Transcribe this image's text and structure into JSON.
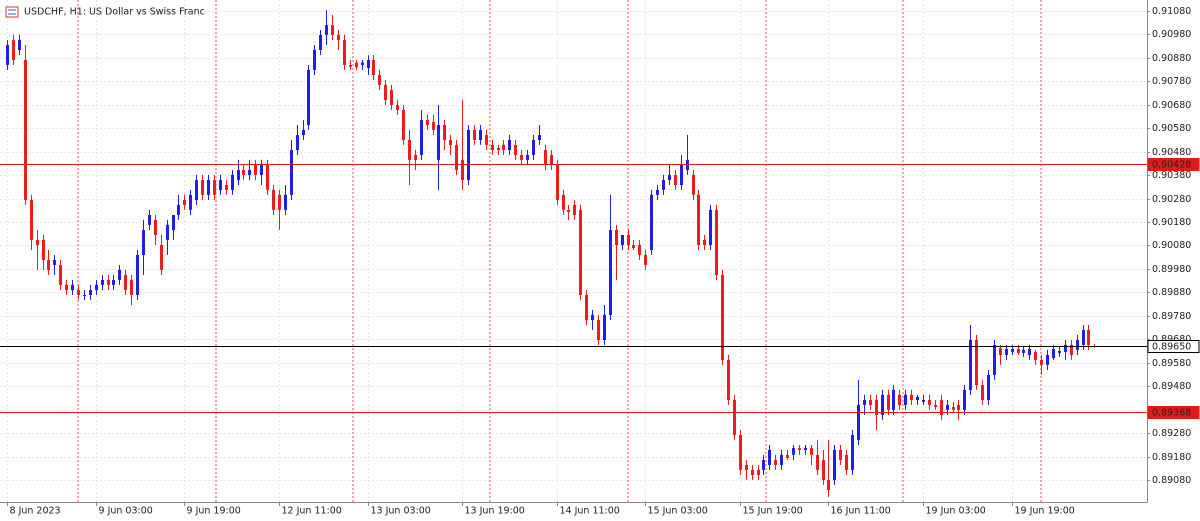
{
  "chart_data": {
    "type": "candlestick",
    "title": "USDCHF, H1:  US Dollar vs Swiss Franc",
    "up_color": "#1f1fe6",
    "down_color": "#ee1c1c",
    "grid": true,
    "ylim": [
      0.88986,
      0.91127
    ],
    "yticks": [
      {
        "value": 0.9108,
        "label": "0.91080"
      },
      {
        "value": 0.9098,
        "label": "0.90980"
      },
      {
        "value": 0.9088,
        "label": "0.90880"
      },
      {
        "value": 0.9078,
        "label": "0.90780"
      },
      {
        "value": 0.9068,
        "label": "0.90680"
      },
      {
        "value": 0.9058,
        "label": "0.90580"
      },
      {
        "value": 0.9048,
        "label": "0.90480"
      },
      {
        "value": 0.9038,
        "label": "0.90380"
      },
      {
        "value": 0.9028,
        "label": "0.90280"
      },
      {
        "value": 0.9018,
        "label": "0.90180"
      },
      {
        "value": 0.9008,
        "label": "0.90080"
      },
      {
        "value": 0.8998,
        "label": "0.89980"
      },
      {
        "value": 0.8988,
        "label": "0.89880"
      },
      {
        "value": 0.8978,
        "label": "0.89780"
      },
      {
        "value": 0.8968,
        "label": "0.89680"
      },
      {
        "value": 0.8958,
        "label": "0.89580"
      },
      {
        "value": 0.8948,
        "label": "0.89480"
      },
      {
        "value": 0.8938,
        "label": "0.89380"
      },
      {
        "value": 0.8928,
        "label": "0.89280"
      },
      {
        "value": 0.8918,
        "label": "0.89180"
      },
      {
        "value": 0.8908,
        "label": "0.89080"
      }
    ],
    "xlim": [
      -1.2,
      192.9
    ],
    "xticks": [
      {
        "value": 0,
        "label": "8 Jun 2023"
      },
      {
        "value": 15,
        "label": "9 Jun 03:00"
      },
      {
        "value": 30,
        "label": "9 Jun 19:00"
      },
      {
        "value": 46,
        "label": "12 Jun 11:00"
      },
      {
        "value": 61,
        "label": "13 Jun 03:00"
      },
      {
        "value": 77,
        "label": "13 Jun 19:00"
      },
      {
        "value": 93,
        "label": "14 Jun 11:00"
      },
      {
        "value": 108,
        "label": "15 Jun 03:00"
      },
      {
        "value": 124,
        "label": "15 Jun 19:00"
      },
      {
        "value": 139,
        "label": "16 Jun 11:00"
      },
      {
        "value": 155,
        "label": "19 Jun 03:00"
      },
      {
        "value": 170,
        "label": "19 Jun 19:00"
      }
    ],
    "levels": [
      {
        "value": 0.90428,
        "label": "0.90428",
        "color": "#e01b1b",
        "text_color": "#ffffff"
      },
      {
        "value": 0.8965,
        "label": "0.89650",
        "color": "#000000",
        "text_color": "#000000"
      },
      {
        "value": 0.89368,
        "label": "0.89368",
        "color": "#e01b1b",
        "text_color": "#ffffff"
      }
    ],
    "ohlc": [
      [
        0.9085,
        0.90956,
        0.90829,
        0.90935
      ],
      [
        0.90956,
        0.90978,
        0.9085,
        0.90871
      ],
      [
        0.90914,
        0.90978,
        0.90892,
        0.90956
      ],
      [
        0.90871,
        0.90935,
        0.90253,
        0.90274
      ],
      [
        0.90274,
        0.90296,
        0.90061,
        0.90104
      ],
      [
        0.90104,
        0.90146,
        0.89976,
        0.90082
      ],
      [
        0.90104,
        0.90125,
        0.89976,
        0.90018
      ],
      [
        0.90018,
        0.90061,
        0.89954,
        0.89976
      ],
      [
        0.89997,
        0.9004,
        0.89954,
        0.90018
      ],
      [
        0.89997,
        0.90018,
        0.8989,
        0.89912
      ],
      [
        0.89912,
        0.89933,
        0.89869,
        0.8989
      ],
      [
        0.8989,
        0.89933,
        0.89869,
        0.89912
      ],
      [
        0.8989,
        0.89912,
        0.89848,
        0.89869
      ],
      [
        0.89869,
        0.8989,
        0.89848,
        0.89869
      ],
      [
        0.89869,
        0.89912,
        0.89848,
        0.8989
      ],
      [
        0.8989,
        0.89933,
        0.89869,
        0.89912
      ],
      [
        0.89912,
        0.89954,
        0.8989,
        0.89933
      ],
      [
        0.89933,
        0.89954,
        0.8989,
        0.89912
      ],
      [
        0.89912,
        0.89954,
        0.8989,
        0.89933
      ],
      [
        0.89933,
        0.89997,
        0.89912,
        0.89976
      ],
      [
        0.89954,
        0.89976,
        0.89869,
        0.8989
      ],
      [
        0.89933,
        0.89954,
        0.89826,
        0.89869
      ],
      [
        0.89869,
        0.90061,
        0.89848,
        0.9004
      ],
      [
        0.9004,
        0.90189,
        0.89954,
        0.90146
      ],
      [
        0.90168,
        0.90232,
        0.90146,
        0.9021
      ],
      [
        0.90189,
        0.9021,
        0.90082,
        0.90125
      ],
      [
        0.90082,
        0.90125,
        0.89954,
        0.89976
      ],
      [
        0.90104,
        0.90189,
        0.9004,
        0.90168
      ],
      [
        0.90146,
        0.9021,
        0.90104,
        0.9021
      ],
      [
        0.9021,
        0.90296,
        0.90189,
        0.90253
      ],
      [
        0.90274,
        0.90296,
        0.90232,
        0.90253
      ],
      [
        0.90232,
        0.90317,
        0.9021,
        0.90296
      ],
      [
        0.90274,
        0.90381,
        0.90253,
        0.90359
      ],
      [
        0.90359,
        0.90381,
        0.90274,
        0.90296
      ],
      [
        0.90296,
        0.90381,
        0.90274,
        0.90359
      ],
      [
        0.90359,
        0.90381,
        0.90274,
        0.90296
      ],
      [
        0.90317,
        0.90381,
        0.90296,
        0.90359
      ],
      [
        0.90338,
        0.90359,
        0.90296,
        0.90317
      ],
      [
        0.90317,
        0.90402,
        0.90296,
        0.90381
      ],
      [
        0.90359,
        0.90445,
        0.90338,
        0.90402
      ],
      [
        0.90402,
        0.90423,
        0.90359,
        0.90381
      ],
      [
        0.90381,
        0.90445,
        0.90359,
        0.90402
      ],
      [
        0.90423,
        0.90445,
        0.90359,
        0.90381
      ],
      [
        0.90381,
        0.90445,
        0.90338,
        0.90423
      ],
      [
        0.90423,
        0.90445,
        0.90296,
        0.90317
      ],
      [
        0.90317,
        0.90338,
        0.9021,
        0.90232
      ],
      [
        0.90296,
        0.90317,
        0.90146,
        0.90232
      ],
      [
        0.90232,
        0.90338,
        0.9021,
        0.90296
      ],
      [
        0.90296,
        0.9053,
        0.90274,
        0.90487
      ],
      [
        0.90487,
        0.90594,
        0.90466,
        0.90551
      ],
      [
        0.90551,
        0.90615,
        0.9053,
        0.90573
      ],
      [
        0.90594,
        0.9085,
        0.90573,
        0.90829
      ],
      [
        0.90829,
        0.90935,
        0.90807,
        0.90914
      ],
      [
        0.90914,
        0.90999,
        0.90892,
        0.90978
      ],
      [
        0.90978,
        0.91084,
        0.90935,
        0.9102
      ],
      [
        0.9102,
        0.91063,
        0.90956,
        0.90978
      ],
      [
        0.90978,
        0.90999,
        0.90914,
        0.90956
      ],
      [
        0.90956,
        0.90978,
        0.90829,
        0.9085
      ],
      [
        0.9085,
        0.90871,
        0.90829,
        0.90843
      ],
      [
        0.9086,
        0.90871,
        0.90829,
        0.9084
      ],
      [
        0.9085,
        0.90871,
        0.90829,
        0.9086
      ],
      [
        0.90837,
        0.90892,
        0.90807,
        0.90871
      ],
      [
        0.90871,
        0.90892,
        0.90786,
        0.90807
      ],
      [
        0.90807,
        0.90829,
        0.90743,
        0.90765
      ],
      [
        0.90765,
        0.90786,
        0.90679,
        0.90701
      ],
      [
        0.90743,
        0.90765,
        0.90658,
        0.90679
      ],
      [
        0.90679,
        0.90701,
        0.90637,
        0.90658
      ],
      [
        0.90658,
        0.90679,
        0.90509,
        0.9053
      ],
      [
        0.9053,
        0.90573,
        0.90338,
        0.90445
      ],
      [
        0.90466,
        0.90487,
        0.90402,
        0.90445
      ],
      [
        0.90466,
        0.90658,
        0.90445,
        0.90615
      ],
      [
        0.90615,
        0.90637,
        0.90573,
        0.90594
      ],
      [
        0.90607,
        0.90637,
        0.90551,
        0.90573
      ],
      [
        0.90445,
        0.90679,
        0.90317,
        0.90594
      ],
      [
        0.90594,
        0.90615,
        0.90487,
        0.9053
      ],
      [
        0.9053,
        0.90551,
        0.90466,
        0.90509
      ],
      [
        0.90509,
        0.9053,
        0.90381,
        0.90402
      ],
      [
        0.90445,
        0.90701,
        0.90317,
        0.90359
      ],
      [
        0.90359,
        0.90594,
        0.90338,
        0.90573
      ],
      [
        0.90573,
        0.90594,
        0.90509,
        0.9053
      ],
      [
        0.9053,
        0.90594,
        0.90509,
        0.90573
      ],
      [
        0.90551,
        0.90573,
        0.90487,
        0.90509
      ],
      [
        0.90509,
        0.9053,
        0.90466,
        0.90487
      ],
      [
        0.90496,
        0.90509,
        0.90466,
        0.90487
      ],
      [
        0.90509,
        0.9053,
        0.90466,
        0.90487
      ],
      [
        0.90487,
        0.90551,
        0.90466,
        0.9053
      ],
      [
        0.90509,
        0.9053,
        0.90445,
        0.90466
      ],
      [
        0.90466,
        0.90487,
        0.90423,
        0.90445
      ],
      [
        0.90445,
        0.90487,
        0.90423,
        0.90466
      ],
      [
        0.90466,
        0.90551,
        0.90445,
        0.9053
      ],
      [
        0.9053,
        0.90594,
        0.90509,
        0.90551
      ],
      [
        0.90487,
        0.90509,
        0.90402,
        0.90423
      ],
      [
        0.90466,
        0.90487,
        0.90402,
        0.90423
      ],
      [
        0.90423,
        0.90445,
        0.90253,
        0.90274
      ],
      [
        0.90296,
        0.90317,
        0.9021,
        0.90232
      ],
      [
        0.90232,
        0.90253,
        0.90189,
        0.90223
      ],
      [
        0.90253,
        0.90274,
        0.90189,
        0.9021
      ],
      [
        0.90232,
        0.90253,
        0.89848,
        0.89869
      ],
      [
        0.89869,
        0.8989,
        0.89741,
        0.89762
      ],
      [
        0.89762,
        0.89805,
        0.8972,
        0.89784
      ],
      [
        0.89762,
        0.89784,
        0.89656,
        0.89677
      ],
      [
        0.89677,
        0.89826,
        0.89656,
        0.89784
      ],
      [
        0.89784,
        0.90296,
        0.89762,
        0.90146
      ],
      [
        0.90146,
        0.90168,
        0.89933,
        0.90082
      ],
      [
        0.90082,
        0.90125,
        0.90061,
        0.90125
      ],
      [
        0.90125,
        0.90146,
        0.90061,
        0.90082
      ],
      [
        0.90082,
        0.90104,
        0.90061,
        0.90069
      ],
      [
        0.90082,
        0.90104,
        0.90018,
        0.9004
      ],
      [
        0.9004,
        0.90061,
        0.89976,
        0.89997
      ],
      [
        0.90061,
        0.90317,
        0.9004,
        0.90296
      ],
      [
        0.90296,
        0.90338,
        0.90274,
        0.90317
      ],
      [
        0.90317,
        0.90381,
        0.90296,
        0.90359
      ],
      [
        0.90359,
        0.90423,
        0.90338,
        0.90381
      ],
      [
        0.90381,
        0.90402,
        0.90317,
        0.90338
      ],
      [
        0.90338,
        0.90466,
        0.90317,
        0.90423
      ],
      [
        0.90402,
        0.90551,
        0.90381,
        0.90445
      ],
      [
        0.90381,
        0.90402,
        0.90274,
        0.90296
      ],
      [
        0.90296,
        0.90317,
        0.90061,
        0.90082
      ],
      [
        0.90104,
        0.90125,
        0.90061,
        0.90082
      ],
      [
        0.90082,
        0.90253,
        0.90061,
        0.90232
      ],
      [
        0.90232,
        0.90253,
        0.89933,
        0.89954
      ],
      [
        0.89954,
        0.89976,
        0.89571,
        0.89592
      ],
      [
        0.89592,
        0.89613,
        0.894,
        0.89421
      ],
      [
        0.89421,
        0.89443,
        0.89251,
        0.89272
      ],
      [
        0.89272,
        0.89293,
        0.89101,
        0.89123
      ],
      [
        0.89144,
        0.89165,
        0.8908,
        0.89123
      ],
      [
        0.89123,
        0.89144,
        0.8908,
        0.89101
      ],
      [
        0.89123,
        0.89144,
        0.8908,
        0.89101
      ],
      [
        0.89123,
        0.89187,
        0.89101,
        0.89165
      ],
      [
        0.89144,
        0.89229,
        0.89123,
        0.89208
      ],
      [
        0.89165,
        0.89187,
        0.89123,
        0.89144
      ],
      [
        0.89144,
        0.89208,
        0.89123,
        0.89187
      ],
      [
        0.89187,
        0.89208,
        0.89165,
        0.89174
      ],
      [
        0.89187,
        0.89229,
        0.89165,
        0.89216
      ],
      [
        0.89216,
        0.89229,
        0.89187,
        0.89208
      ],
      [
        0.89208,
        0.89229,
        0.89187,
        0.89216
      ],
      [
        0.89216,
        0.89229,
        0.89144,
        0.89187
      ],
      [
        0.89187,
        0.89251,
        0.89101,
        0.89123
      ],
      [
        0.89165,
        0.89208,
        0.89059,
        0.8908
      ],
      [
        0.8908,
        0.89251,
        0.89008,
        0.89037
      ],
      [
        0.8908,
        0.89229,
        0.89059,
        0.89208
      ],
      [
        0.89208,
        0.89229,
        0.89144,
        0.89165
      ],
      [
        0.89187,
        0.89208,
        0.89101,
        0.89123
      ],
      [
        0.89123,
        0.89293,
        0.89101,
        0.89272
      ],
      [
        0.89251,
        0.89507,
        0.89229,
        0.894
      ],
      [
        0.894,
        0.89443,
        0.89357,
        0.89421
      ],
      [
        0.89421,
        0.89443,
        0.89379,
        0.894
      ],
      [
        0.89421,
        0.89443,
        0.89293,
        0.89357
      ],
      [
        0.89357,
        0.89464,
        0.89336,
        0.89443
      ],
      [
        0.89443,
        0.89464,
        0.89357,
        0.89379
      ],
      [
        0.89379,
        0.89485,
        0.89357,
        0.89464
      ],
      [
        0.89443,
        0.89464,
        0.89379,
        0.894
      ],
      [
        0.894,
        0.89464,
        0.89379,
        0.89443
      ],
      [
        0.89443,
        0.89464,
        0.894,
        0.89421
      ],
      [
        0.89421,
        0.89443,
        0.894,
        0.89434
      ],
      [
        0.89413,
        0.89443,
        0.894,
        0.89421
      ],
      [
        0.89421,
        0.89443,
        0.89379,
        0.894
      ],
      [
        0.894,
        0.89421,
        0.89379,
        0.89391
      ],
      [
        0.89421,
        0.89443,
        0.89336,
        0.89357
      ],
      [
        0.89379,
        0.89421,
        0.89357,
        0.894
      ],
      [
        0.89391,
        0.89413,
        0.8937,
        0.89379
      ],
      [
        0.894,
        0.89421,
        0.89336,
        0.89379
      ],
      [
        0.89379,
        0.89485,
        0.89357,
        0.89464
      ],
      [
        0.89464,
        0.89741,
        0.89443,
        0.89677
      ],
      [
        0.89677,
        0.89698,
        0.89464,
        0.89485
      ],
      [
        0.89485,
        0.89507,
        0.894,
        0.89421
      ],
      [
        0.89421,
        0.89549,
        0.894,
        0.89528
      ],
      [
        0.89528,
        0.89677,
        0.89507,
        0.89656
      ],
      [
        0.89643,
        0.89656,
        0.89571,
        0.89613
      ],
      [
        0.89613,
        0.89656,
        0.89592,
        0.89639
      ],
      [
        0.89626,
        0.89656,
        0.89613,
        0.89639
      ],
      [
        0.89639,
        0.89656,
        0.89613,
        0.89622
      ],
      [
        0.89622,
        0.89647,
        0.89605,
        0.89635
      ],
      [
        0.89613,
        0.89656,
        0.89592,
        0.89639
      ],
      [
        0.89626,
        0.89635,
        0.89571,
        0.89592
      ],
      [
        0.89592,
        0.89613,
        0.89528,
        0.89571
      ],
      [
        0.89571,
        0.89635,
        0.89549,
        0.89613
      ],
      [
        0.896,
        0.89656,
        0.89592,
        0.89639
      ],
      [
        0.89622,
        0.89647,
        0.89605,
        0.8963
      ],
      [
        0.89626,
        0.89677,
        0.89592,
        0.89656
      ],
      [
        0.89656,
        0.89677,
        0.89592,
        0.89613
      ],
      [
        0.89635,
        0.89698,
        0.89613,
        0.89677
      ],
      [
        0.89656,
        0.89741,
        0.89635,
        0.8972
      ],
      [
        0.8972,
        0.89741,
        0.89635,
        0.89656
      ],
      [
        0.89652,
        0.8966,
        0.89643,
        0.8965
      ]
    ]
  }
}
